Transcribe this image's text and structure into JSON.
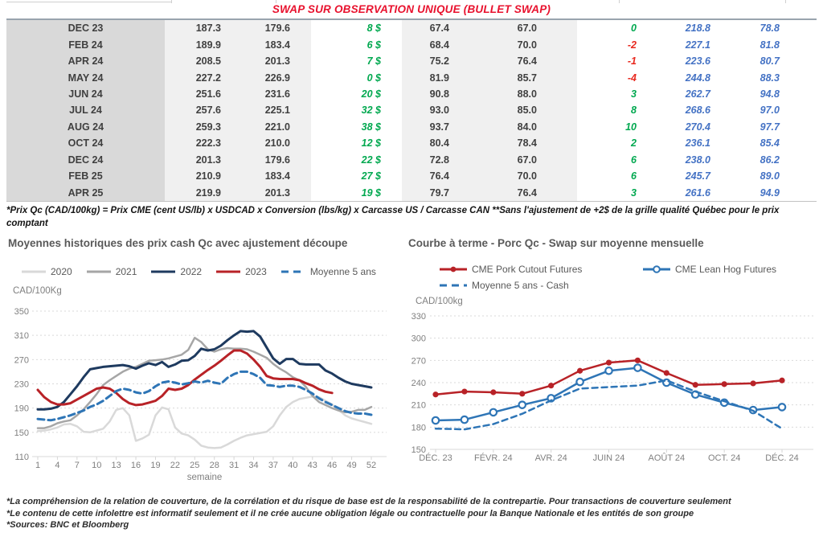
{
  "table": {
    "title": "SWAP SUR OBSERVATION UNIQUE (BULLET SWAP)",
    "rows": [
      [
        "DEC 23",
        "187.3",
        "179.6",
        "8 $",
        "67.4",
        "67.0",
        "0",
        "218.8",
        "78.8"
      ],
      [
        "FEB 24",
        "189.9",
        "183.4",
        "6 $",
        "68.4",
        "70.0",
        "-2",
        "227.1",
        "81.8"
      ],
      [
        "APR 24",
        "208.5",
        "201.3",
        "7 $",
        "75.2",
        "76.4",
        "-1",
        "223.6",
        "80.7"
      ],
      [
        "MAY 24",
        "227.2",
        "226.9",
        "0 $",
        "81.9",
        "85.7",
        "-4",
        "244.8",
        "88.3"
      ],
      [
        "JUN 24",
        "251.6",
        "231.6",
        "20 $",
        "90.8",
        "88.0",
        "3",
        "262.7",
        "94.8"
      ],
      [
        "JUL 24",
        "257.6",
        "225.1",
        "32 $",
        "93.0",
        "85.0",
        "8",
        "268.6",
        "97.0"
      ],
      [
        "AUG 24",
        "259.3",
        "221.0",
        "38 $",
        "93.7",
        "84.0",
        "10",
        "270.4",
        "97.7"
      ],
      [
        "OCT 24",
        "222.3",
        "210.0",
        "12 $",
        "80.4",
        "78.4",
        "2",
        "236.1",
        "85.4"
      ],
      [
        "DEC 24",
        "201.3",
        "179.6",
        "22 $",
        "72.8",
        "67.0",
        "6",
        "238.0",
        "86.2"
      ],
      [
        "FEB 25",
        "210.9",
        "183.4",
        "27 $",
        "76.4",
        "70.0",
        "6",
        "245.7",
        "89.0"
      ],
      [
        "APR 25",
        "219.9",
        "201.3",
        "19 $",
        "79.7",
        "76.4",
        "3",
        "261.6",
        "94.9"
      ]
    ],
    "footnote": "*Prix Qc (CAD/100kg) = Prix CME (cent US/lb) x USDCAD x Conversion (lbs/kg) x Carcasse US / Carcasse CAN **Sans l'ajustement de +2$ de la grille qualité Québec pour le prix comptant"
  },
  "colors": {
    "title_red": "#e8112d",
    "negative_red": "#e8281e",
    "positive_green": "#00a84f",
    "blue_value": "#4472c4",
    "navy_line": "#1e3a5f",
    "red_line": "#b82227",
    "blue_line": "#2e75b6",
    "gray_2021": "#a6a6a6",
    "gray_2020": "#d9d9d9"
  },
  "chart_data": [
    {
      "type": "line",
      "title": "Moyennes historiques des prix cash Qc avec ajustement découpe",
      "xlabel": "semaine",
      "ylabel": "CAD/100Kg",
      "ylim": [
        110,
        350
      ],
      "yticks": [
        110,
        150,
        190,
        230,
        270,
        310,
        350
      ],
      "xticks": [
        1,
        4,
        7,
        10,
        13,
        16,
        19,
        22,
        25,
        28,
        31,
        34,
        37,
        40,
        43,
        46,
        49,
        52
      ],
      "x_range": [
        1,
        52
      ],
      "grid": "dashed-horizontal",
      "legend_position": "top",
      "series": [
        {
          "name": "2020",
          "color": "#d9d9d9",
          "style": "solid",
          "marker": "none",
          "values": [
            152,
            153,
            155,
            158,
            163,
            164,
            160,
            151,
            150,
            153,
            156,
            168,
            187,
            190,
            178,
            136,
            140,
            146,
            178,
            191,
            188,
            158,
            148,
            145,
            138,
            128,
            125,
            124,
            125,
            130,
            136,
            141,
            145,
            147,
            149,
            151,
            160,
            178,
            192,
            200,
            205,
            207,
            209,
            208,
            202,
            196,
            187,
            178,
            173,
            170,
            167,
            164
          ]
        },
        {
          "name": "2021",
          "color": "#a6a6a6",
          "style": "solid",
          "marker": "none",
          "values": [
            157,
            157,
            160,
            165,
            168,
            170,
            178,
            188,
            200,
            213,
            228,
            236,
            243,
            250,
            255,
            258,
            263,
            268,
            269,
            270,
            272,
            275,
            278,
            286,
            306,
            299,
            287,
            283,
            287,
            289,
            288,
            288,
            287,
            283,
            278,
            273,
            263,
            255,
            249,
            241,
            236,
            225,
            210,
            200,
            195,
            190,
            186,
            183,
            184,
            187,
            187,
            192
          ]
        },
        {
          "name": "2022",
          "color": "#1e3a5f",
          "style": "solid",
          "marker": "none",
          "values": [
            188,
            188,
            189,
            192,
            200,
            213,
            226,
            241,
            254,
            256,
            258,
            259,
            260,
            261,
            259,
            255,
            260,
            264,
            261,
            266,
            258,
            262,
            268,
            269,
            276,
            288,
            285,
            287,
            293,
            302,
            310,
            317,
            316,
            317,
            308,
            290,
            272,
            263,
            271,
            271,
            263,
            262,
            262,
            262,
            252,
            247,
            240,
            234,
            230,
            228,
            226,
            224
          ]
        },
        {
          "name": "2023",
          "color": "#b82227",
          "style": "solid",
          "marker": "none",
          "values": [
            220,
            208,
            200,
            196,
            196,
            198,
            204,
            210,
            216,
            222,
            224,
            222,
            215,
            205,
            198,
            195,
            196,
            199,
            202,
            210,
            222,
            220,
            222,
            228,
            237,
            245,
            253,
            260,
            268,
            277,
            285,
            285,
            280,
            270,
            258,
            243,
            239,
            238,
            238,
            238,
            236,
            231,
            227,
            221,
            217,
            215
          ]
        },
        {
          "name": "Moyenne 5 ans",
          "color": "#2e75b6",
          "style": "dashed",
          "marker": "none",
          "values": [
            172,
            171,
            170,
            172,
            175,
            178,
            182,
            186,
            192,
            196,
            202,
            210,
            218,
            222,
            220,
            216,
            214,
            218,
            226,
            232,
            234,
            232,
            229,
            231,
            234,
            232,
            235,
            232,
            230,
            240,
            246,
            250,
            250,
            246,
            240,
            228,
            227,
            225,
            227,
            227,
            225,
            220,
            214,
            206,
            200,
            195,
            190,
            185,
            182,
            181,
            181,
            179
          ]
        }
      ]
    },
    {
      "type": "line",
      "title": "Courbe à terme - Porc Qc - Swap sur moyenne mensuelle",
      "xlabel": "",
      "ylabel": "CAD/100kg",
      "ylim": [
        150,
        330
      ],
      "yticks": [
        150,
        180,
        210,
        240,
        270,
        300,
        330
      ],
      "n_points": 13,
      "xtick_indices": [
        0,
        2,
        4,
        6,
        8,
        10,
        12
      ],
      "xtick_labels": [
        "DÉC. 23",
        "FÉVR. 24",
        "AVR. 24",
        "JUIN 24",
        "AOÛT 24",
        "OCT. 24",
        "DÉC. 24"
      ],
      "grid": "dashed-horizontal",
      "legend_position": "top",
      "series": [
        {
          "name": "CME Pork Cutout Futures",
          "color": "#b82227",
          "style": "solid",
          "marker": "filled-circle",
          "values": [
            224,
            228,
            227,
            225,
            236,
            256,
            267,
            270,
            253,
            237,
            238,
            239,
            243
          ]
        },
        {
          "name": "CME Lean Hog Futures",
          "color": "#2e75b6",
          "style": "solid",
          "marker": "open-circle",
          "values": [
            189,
            190,
            200,
            210,
            219,
            241,
            256,
            260,
            240,
            224,
            213,
            203,
            207
          ]
        },
        {
          "name": "Moyenne 5 ans - Cash",
          "color": "#2e75b6",
          "style": "dashed",
          "marker": "none",
          "values": [
            178,
            177,
            184,
            198,
            216,
            232,
            234,
            236,
            243,
            228,
            215,
            202,
            178
          ]
        }
      ]
    }
  ],
  "footer": {
    "lines": [
      "*La compréhension de la relation de couverture, de la corrélation et du risque de base est de la responsabilité de la contrepartie. Pour transactions de couverture seulement",
      "*Le contenu de cette infolettre est informatif seulement et il ne crée aucune obligation légale ou contractuelle pour la Banque Nationale et les entités de son groupe",
      "*Sources: BNC et Bloomberg"
    ]
  }
}
